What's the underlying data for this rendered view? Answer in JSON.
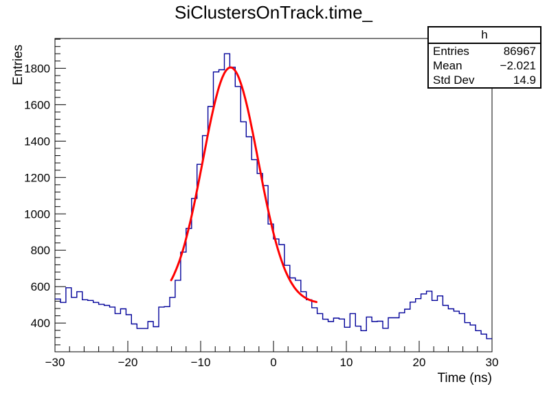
{
  "title": "SiClustersOnTrack.time_",
  "stats_box": {
    "title": "h",
    "rows": [
      {
        "label": "Entries",
        "value": "86967"
      },
      {
        "label": "Mean",
        "value": "−2.021"
      },
      {
        "label": "Std Dev",
        "value": "14.9"
      }
    ]
  },
  "chart_data": {
    "type": "bar",
    "style": "step-histogram",
    "title": "SiClustersOnTrack.time_",
    "xlabel": "Time (ns)",
    "ylabel": "Entries",
    "xlim": [
      -30,
      30
    ],
    "ylim": [
      242,
      1964
    ],
    "grid": false,
    "legend": false,
    "x_ticks": [
      {
        "v": -30,
        "label": "−30"
      },
      {
        "v": -20,
        "label": "−20"
      },
      {
        "v": -10,
        "label": "−10"
      },
      {
        "v": 0,
        "label": "0"
      },
      {
        "v": 10,
        "label": "10"
      },
      {
        "v": 20,
        "label": "20"
      },
      {
        "v": 30,
        "label": "30"
      }
    ],
    "y_ticks": [
      {
        "v": 400,
        "label": "400"
      },
      {
        "v": 600,
        "label": "600"
      },
      {
        "v": 800,
        "label": "800"
      },
      {
        "v": 1000,
        "label": "1000"
      },
      {
        "v": 1200,
        "label": "1200"
      },
      {
        "v": 1400,
        "label": "1400"
      },
      {
        "v": 1600,
        "label": "1600"
      },
      {
        "v": 1800,
        "label": "1800"
      }
    ],
    "x_minor_step": 2,
    "y_minor_step": 40,
    "bin_start": -30,
    "bin_width": 0.75,
    "hist_color": "#000099",
    "values": [
      532,
      513,
      594,
      541,
      572,
      528,
      524,
      513,
      503,
      497,
      488,
      452,
      478,
      446,
      395,
      370,
      370,
      408,
      380,
      488,
      490,
      541,
      635,
      790,
      920,
      1085,
      1272,
      1430,
      1590,
      1780,
      1792,
      1880,
      1806,
      1700,
      1506,
      1424,
      1298,
      1222,
      1155,
      944,
      862,
      831,
      717,
      648,
      635,
      572,
      528,
      484,
      452,
      421,
      408,
      427,
      422,
      377,
      452,
      383,
      358,
      433,
      408,
      410,
      371,
      429,
      429,
      456,
      476,
      515,
      534,
      560,
      575,
      524,
      549,
      497,
      478,
      465,
      452,
      402,
      389,
      358,
      339,
      314
    ],
    "fit": {
      "function": "gaussian + constant",
      "color": "#ff0000",
      "amplitude": 1300,
      "mean": -5.9,
      "sigma": 3.8,
      "constant": 505,
      "x_range": [
        -14.05,
        5.9
      ]
    }
  }
}
